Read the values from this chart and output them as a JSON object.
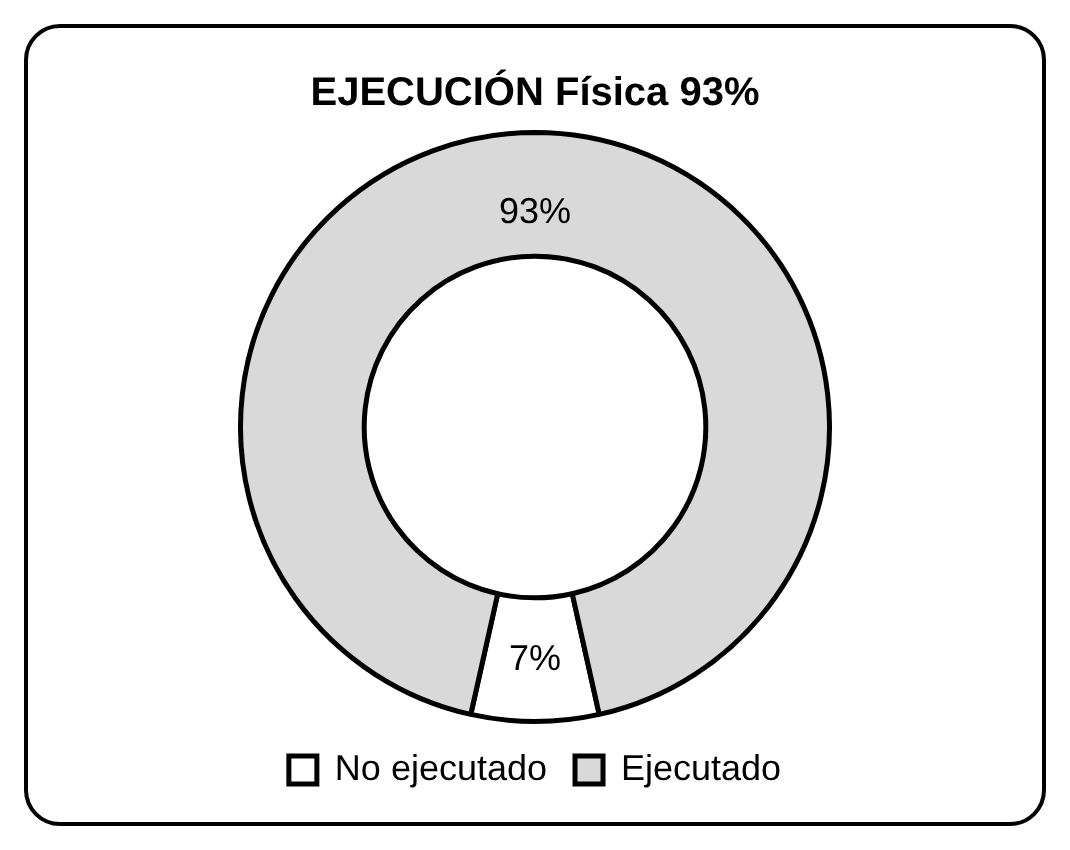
{
  "chart_data": {
    "type": "donut",
    "title": "EJECUCIÓN Física 93%",
    "categories": [
      "No ejecutado",
      "Ejecutado"
    ],
    "values": [
      7,
      93
    ],
    "colors": [
      "#ffffff",
      "#d9d9d9"
    ],
    "value_labels": [
      "7%",
      "93%"
    ],
    "legend": "bottom"
  }
}
